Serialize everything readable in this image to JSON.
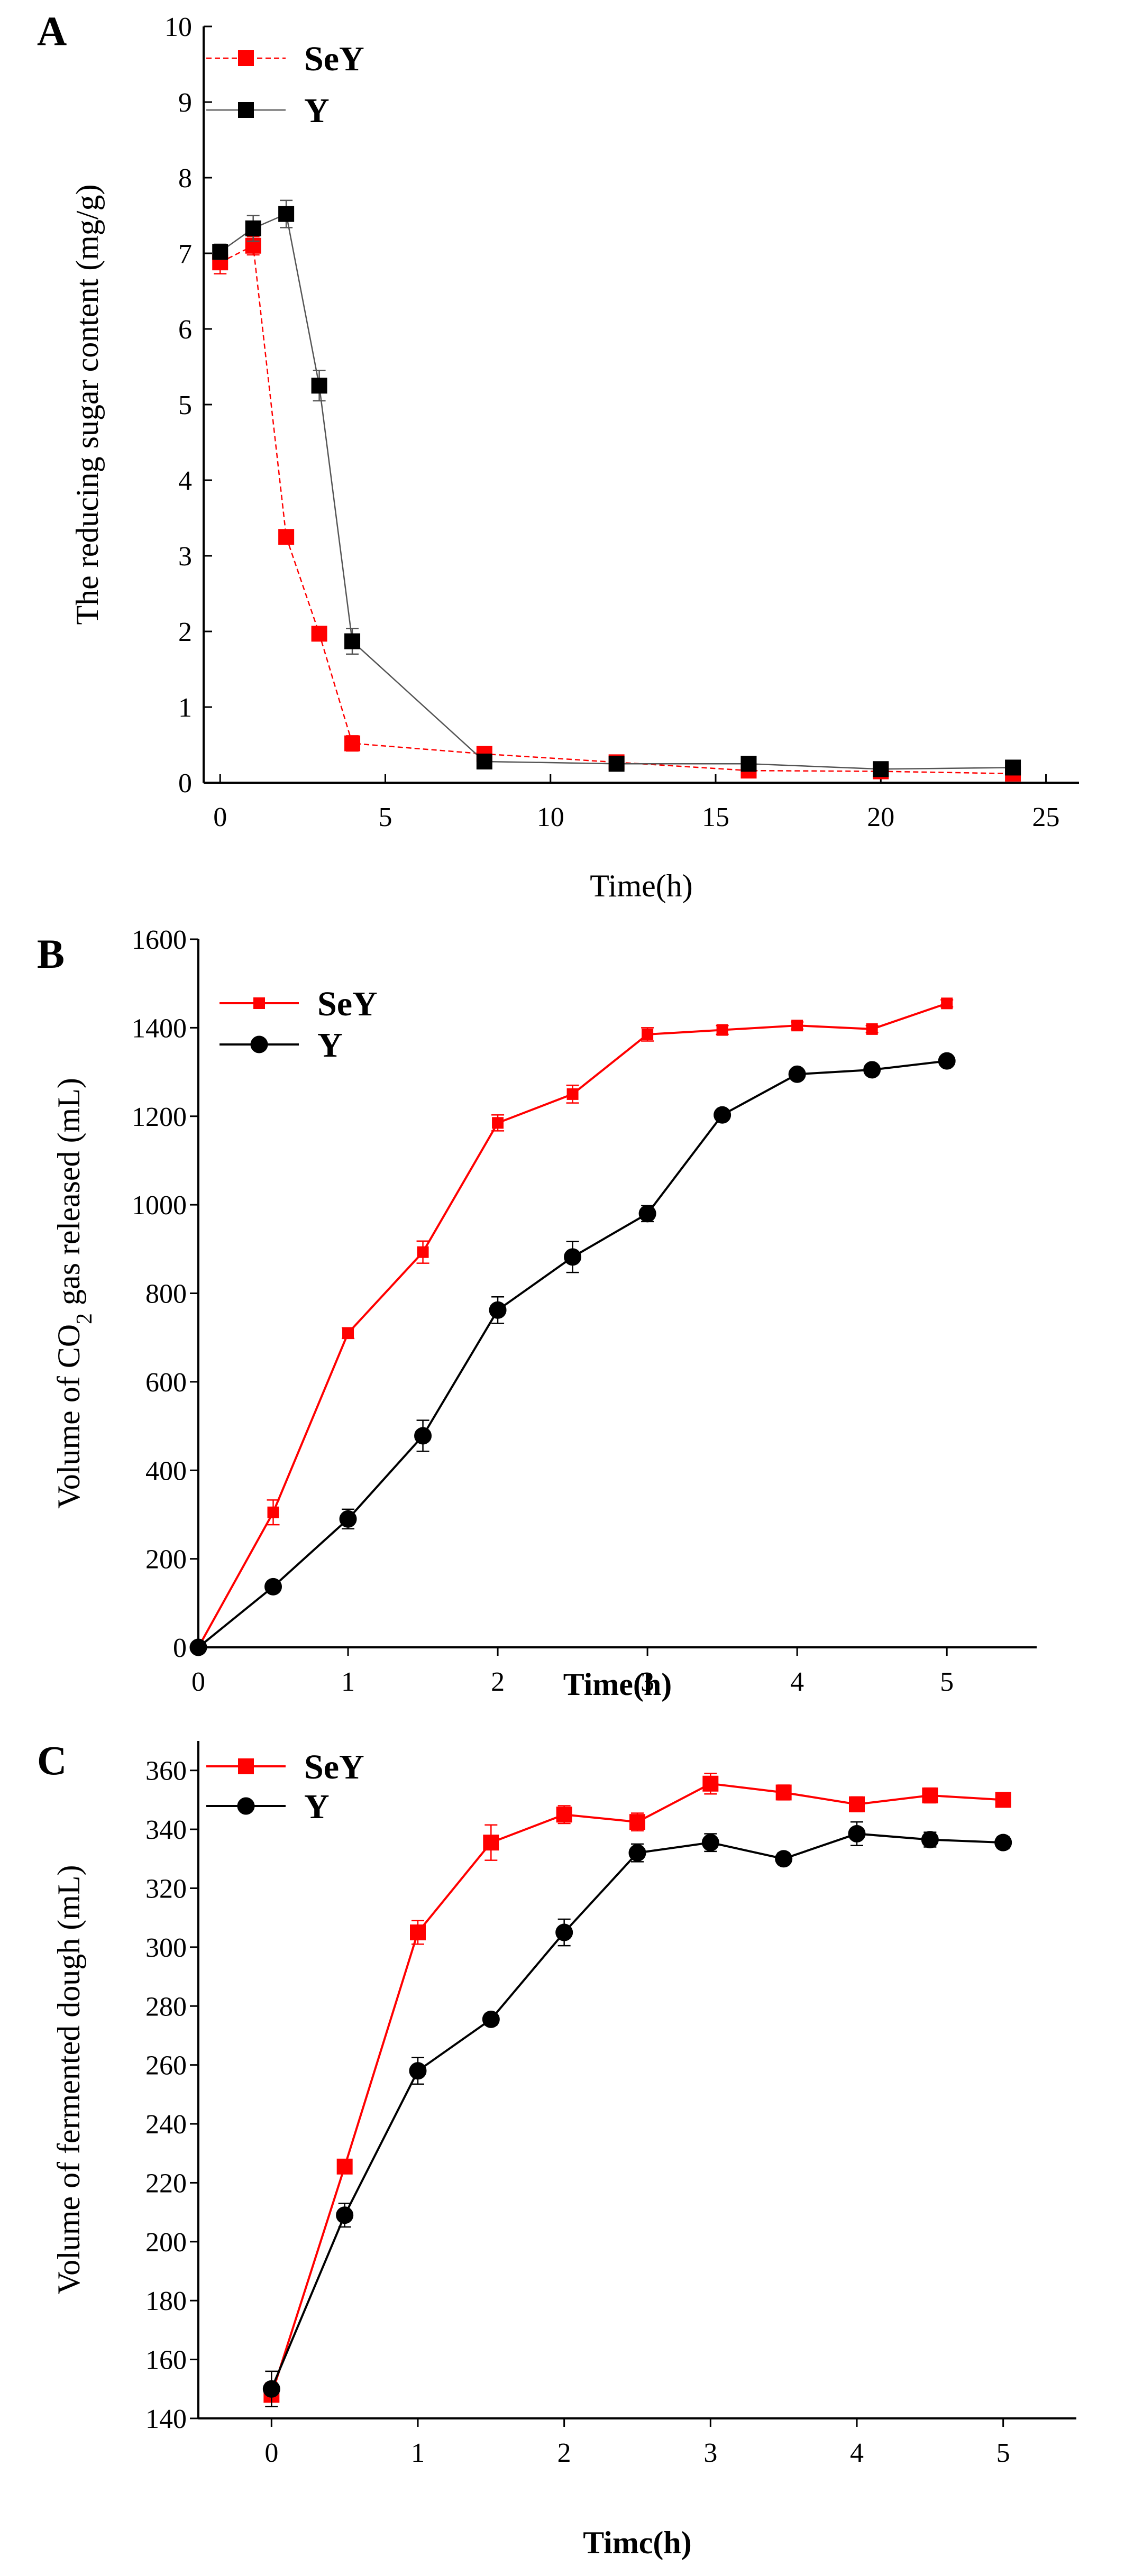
{
  "colors": {
    "SeY": "#ff0000",
    "Y": "#000000",
    "axis": "#000000",
    "background": "#ffffff"
  },
  "chart_data": [
    {
      "panel": "A",
      "type": "line",
      "xlabel": "Time(h)",
      "ylabel": "The reducing sugar content (mg/g)",
      "xlim": [
        -0.5,
        26
      ],
      "ylim": [
        0,
        10
      ],
      "xticks": [
        0,
        5,
        10,
        15,
        20,
        25
      ],
      "yticks": [
        0,
        1,
        2,
        3,
        4,
        5,
        6,
        7,
        8,
        9,
        10
      ],
      "legend_position": "top-left",
      "series": [
        {
          "name": "SeY",
          "marker": "square",
          "line": "dashed",
          "points": [
            {
              "x": 0,
              "y": 6.88,
              "err": 0.15
            },
            {
              "x": 1,
              "y": 7.1,
              "err": 0.12
            },
            {
              "x": 2,
              "y": 3.25,
              "err": 0.08
            },
            {
              "x": 3,
              "y": 1.97,
              "err": 0.06
            },
            {
              "x": 4,
              "y": 0.52,
              "err": 0.1
            },
            {
              "x": 8,
              "y": 0.38,
              "err": 0.05
            },
            {
              "x": 12,
              "y": 0.27,
              "err": 0.04
            },
            {
              "x": 16,
              "y": 0.16,
              "err": 0.03
            },
            {
              "x": 20,
              "y": 0.15,
              "err": 0.03
            },
            {
              "x": 24,
              "y": 0.12,
              "err": 0.03
            }
          ]
        },
        {
          "name": "Y",
          "marker": "square",
          "line": "solid",
          "points": [
            {
              "x": 0,
              "y": 7.02,
              "err": 0.1
            },
            {
              "x": 1,
              "y": 7.33,
              "err": 0.17
            },
            {
              "x": 2,
              "y": 7.52,
              "err": 0.18
            },
            {
              "x": 3,
              "y": 5.25,
              "err": 0.2
            },
            {
              "x": 4,
              "y": 1.87,
              "err": 0.17
            },
            {
              "x": 8,
              "y": 0.28,
              "err": 0.05
            },
            {
              "x": 12,
              "y": 0.25,
              "err": 0.04
            },
            {
              "x": 16,
              "y": 0.25,
              "err": 0.04
            },
            {
              "x": 20,
              "y": 0.18,
              "err": 0.04
            },
            {
              "x": 24,
              "y": 0.2,
              "err": 0.04
            }
          ]
        }
      ]
    },
    {
      "panel": "B",
      "type": "line",
      "xlabel": "Time(h)",
      "ylabel_parts": [
        "Volume of CO",
        "2",
        " gas released (mL)"
      ],
      "xlim": [
        0,
        5.6
      ],
      "ylim": [
        0,
        1600
      ],
      "xticks": [
        0,
        1,
        2,
        3,
        4,
        5
      ],
      "yticks": [
        0,
        200,
        400,
        600,
        800,
        1000,
        1200,
        1400,
        1600
      ],
      "legend_position": "top-left",
      "series": [
        {
          "name": "SeY",
          "marker": "square-small",
          "line": "solid",
          "points": [
            {
              "x": 0,
              "y": 0,
              "err": 0
            },
            {
              "x": 0.5,
              "y": 305,
              "err": 28
            },
            {
              "x": 1,
              "y": 710,
              "err": 12
            },
            {
              "x": 1.5,
              "y": 893,
              "err": 25
            },
            {
              "x": 2,
              "y": 1185,
              "err": 18
            },
            {
              "x": 2.5,
              "y": 1250,
              "err": 20
            },
            {
              "x": 3,
              "y": 1385,
              "err": 15
            },
            {
              "x": 3.5,
              "y": 1395,
              "err": 10
            },
            {
              "x": 4,
              "y": 1405,
              "err": 8
            },
            {
              "x": 4.5,
              "y": 1397,
              "err": 8
            },
            {
              "x": 5,
              "y": 1455,
              "err": 8
            }
          ]
        },
        {
          "name": "Y",
          "marker": "circle",
          "line": "solid",
          "points": [
            {
              "x": 0,
              "y": 0,
              "err": 0
            },
            {
              "x": 0.5,
              "y": 137,
              "err": 8
            },
            {
              "x": 1,
              "y": 290,
              "err": 22
            },
            {
              "x": 1.5,
              "y": 478,
              "err": 35
            },
            {
              "x": 2,
              "y": 762,
              "err": 30
            },
            {
              "x": 2.5,
              "y": 882,
              "err": 35
            },
            {
              "x": 3,
              "y": 980,
              "err": 18
            },
            {
              "x": 3.5,
              "y": 1203,
              "err": 10
            },
            {
              "x": 4,
              "y": 1295,
              "err": 8
            },
            {
              "x": 4.5,
              "y": 1305,
              "err": 8
            },
            {
              "x": 5,
              "y": 1325,
              "err": 8
            }
          ]
        }
      ]
    },
    {
      "panel": "C",
      "type": "line",
      "xlabel": "Timc(h)",
      "ylabel": "Volume of fermented dough (mL)",
      "xlim": [
        -0.5,
        5.5
      ],
      "ylim": [
        140,
        370
      ],
      "xticks": [
        0,
        1,
        2,
        3,
        4,
        5
      ],
      "yticks": [
        140,
        160,
        180,
        200,
        220,
        240,
        260,
        280,
        300,
        320,
        340,
        360
      ],
      "legend_position": "top-left",
      "series": [
        {
          "name": "SeY",
          "marker": "square",
          "line": "solid",
          "points": [
            {
              "x": 0,
              "y": 148,
              "err": 4
            },
            {
              "x": 0.5,
              "y": 225.5,
              "err": 2
            },
            {
              "x": 1,
              "y": 305,
              "err": 4
            },
            {
              "x": 1.5,
              "y": 335.5,
              "err": 6
            },
            {
              "x": 2,
              "y": 345,
              "err": 3
            },
            {
              "x": 2.5,
              "y": 342.5,
              "err": 3
            },
            {
              "x": 3,
              "y": 355.5,
              "err": 3.5
            },
            {
              "x": 3.5,
              "y": 352.5,
              "err": 2.5
            },
            {
              "x": 4,
              "y": 348.5,
              "err": 2.5
            },
            {
              "x": 4.5,
              "y": 351.5,
              "err": 2.5
            },
            {
              "x": 5,
              "y": 350,
              "err": 2
            }
          ]
        },
        {
          "name": "Y",
          "marker": "circle",
          "line": "solid",
          "points": [
            {
              "x": 0,
              "y": 150,
              "err": 6
            },
            {
              "x": 0.5,
              "y": 209,
              "err": 4
            },
            {
              "x": 1,
              "y": 258,
              "err": 4.5
            },
            {
              "x": 1.5,
              "y": 275.5,
              "err": 2
            },
            {
              "x": 2,
              "y": 305,
              "err": 4.5
            },
            {
              "x": 2.5,
              "y": 332,
              "err": 3
            },
            {
              "x": 3,
              "y": 335.5,
              "err": 3
            },
            {
              "x": 3.5,
              "y": 330,
              "err": 2
            },
            {
              "x": 4,
              "y": 338.5,
              "err": 4
            },
            {
              "x": 4.5,
              "y": 336.5,
              "err": 2.5
            },
            {
              "x": 5,
              "y": 335.5,
              "err": 2
            }
          ]
        }
      ]
    }
  ]
}
